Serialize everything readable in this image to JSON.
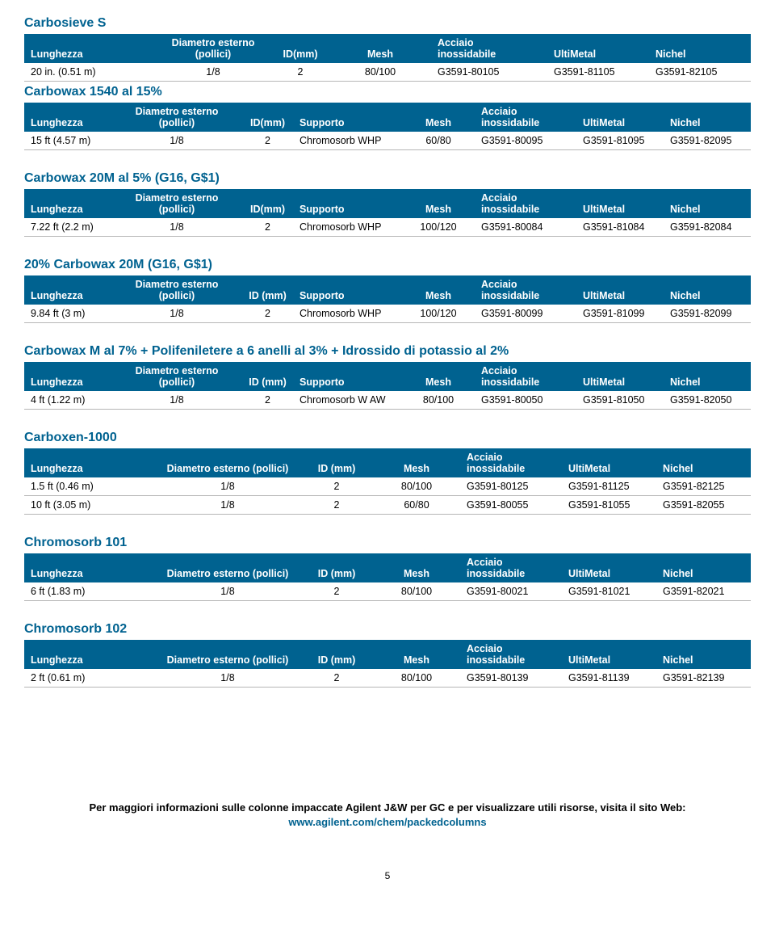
{
  "colors": {
    "title": "#006290",
    "header_bg": "#006290",
    "header_fg": "#ffffff",
    "row_border": "#b6b6b6",
    "link": "#006290",
    "text": "#000000",
    "background": "#ffffff"
  },
  "sections": [
    {
      "title": "Carbosieve S",
      "cols": [
        "Lunghezza",
        "Diametro esterno\n(pollici)",
        "ID(mm)",
        "Mesh",
        "Acciaio\ninossidabile",
        "UltiMetal",
        "Nichel"
      ],
      "widths": [
        "18%",
        "16%",
        "8%",
        "14%",
        "16%",
        "14%",
        "14%"
      ],
      "align": [
        "l",
        "c",
        "c",
        "c",
        "l",
        "l",
        "l"
      ],
      "rows": [
        [
          "20 in. (0.51 m)",
          "1/8",
          "2",
          "80/100",
          "G3591-80105",
          "G3591-81105",
          "G3591-82105"
        ]
      ]
    },
    {
      "title": "Carbowax 1540 al 15%",
      "cols": [
        "Lunghezza",
        "Diametro esterno (pollici)",
        "ID(mm)",
        "Supporto",
        "Mesh",
        "Acciaio inossidabile",
        "UltiMetal",
        "Nichel"
      ],
      "widths": [
        "12%",
        "18%",
        "7%",
        "15%",
        "10%",
        "14%",
        "12%",
        "12%"
      ],
      "align": [
        "l",
        "c",
        "c",
        "l",
        "c",
        "l",
        "l",
        "l"
      ],
      "rows": [
        [
          "15 ft (4.57 m)",
          "1/8",
          "2",
          "Chromosorb WHP",
          "60/80",
          "G3591-80095",
          "G3591-81095",
          "G3591-82095"
        ]
      ]
    },
    {
      "title": "Carbowax 20M al 5% (G16, G$1)",
      "cols": [
        "Lunghezza",
        "Diametro esterno (pollici)",
        "ID(mm)",
        "Supporto",
        "Mesh",
        "Acciaio inossidabile",
        "UltiMetal",
        "Nichel"
      ],
      "widths": [
        "12%",
        "18%",
        "7%",
        "15%",
        "10%",
        "14%",
        "12%",
        "12%"
      ],
      "align": [
        "l",
        "c",
        "c",
        "l",
        "c",
        "l",
        "l",
        "l"
      ],
      "rows": [
        [
          "7.22 ft (2.2 m)",
          "1/8",
          "2",
          "Chromosorb WHP",
          "100/120",
          "G3591-80084",
          "G3591-81084",
          "G3591-82084"
        ]
      ]
    },
    {
      "title": "20% Carbowax 20M (G16, G$1)",
      "cols": [
        "Lunghezza",
        "Diametro esterno (pollici)",
        "ID (mm)",
        "Supporto",
        "Mesh",
        "Acciaio inossidabile",
        "UltiMetal",
        "Nichel"
      ],
      "widths": [
        "12%",
        "18%",
        "7%",
        "15%",
        "10%",
        "14%",
        "12%",
        "12%"
      ],
      "align": [
        "l",
        "c",
        "c",
        "l",
        "c",
        "l",
        "l",
        "l"
      ],
      "rows": [
        [
          "9.84 ft (3 m)",
          "1/8",
          "2",
          "Chromosorb WHP",
          "100/120",
          "G3591-80099",
          "G3591-81099",
          "G3591-82099"
        ]
      ]
    },
    {
      "title": "Carbowax M al 7% + Polifeniletere a 6 anelli al 3% + Idrossido di potassio al 2%",
      "cols": [
        "Lunghezza",
        "Diametro esterno (pollici)",
        "ID (mm)",
        "Supporto",
        "Mesh",
        "Acciaio inossidabile",
        "UltiMetal",
        "Nichel"
      ],
      "widths": [
        "12%",
        "18%",
        "7%",
        "15%",
        "10%",
        "14%",
        "12%",
        "12%"
      ],
      "align": [
        "l",
        "c",
        "c",
        "l",
        "c",
        "l",
        "l",
        "l"
      ],
      "rows": [
        [
          "4 ft (1.22 m)",
          "1/8",
          "2",
          "Chromosorb W AW",
          "80/100",
          "G3591-80050",
          "G3591-81050",
          "G3591-82050"
        ]
      ]
    },
    {
      "title": "Carboxen-1000",
      "cols": [
        "Lunghezza",
        "Diametro esterno (pollici)",
        "ID (mm)",
        "Mesh",
        "Acciaio inossidabile",
        "UltiMetal",
        "Nichel"
      ],
      "widths": [
        "18%",
        "20%",
        "10%",
        "12%",
        "14%",
        "13%",
        "13%"
      ],
      "align": [
        "l",
        "c",
        "c",
        "c",
        "l",
        "l",
        "l"
      ],
      "rows": [
        [
          "1.5 ft (0.46 m)",
          "1/8",
          "2",
          "80/100",
          "G3591-80125",
          "G3591-81125",
          "G3591-82125"
        ],
        [
          "10 ft (3.05 m)",
          "1/8",
          "2",
          "60/80",
          "G3591-80055",
          "G3591-81055",
          "G3591-82055"
        ]
      ]
    },
    {
      "title": "Chromosorb 101",
      "cols": [
        "Lunghezza",
        "Diametro esterno (pollici)",
        "ID (mm)",
        "Mesh",
        "Acciaio inossidabile",
        "UltiMetal",
        "Nichel"
      ],
      "widths": [
        "18%",
        "20%",
        "10%",
        "12%",
        "14%",
        "13%",
        "13%"
      ],
      "align": [
        "l",
        "c",
        "c",
        "c",
        "l",
        "l",
        "l"
      ],
      "rows": [
        [
          "6 ft (1.83 m)",
          "1/8",
          "2",
          "80/100",
          "G3591-80021",
          "G3591-81021",
          "G3591-82021"
        ]
      ]
    },
    {
      "title": "Chromosorb 102",
      "cols": [
        "Lunghezza",
        "Diametro esterno (pollici)",
        "ID (mm)",
        "Mesh",
        "Acciaio inossidabile",
        "UltiMetal",
        "Nichel"
      ],
      "widths": [
        "18%",
        "20%",
        "10%",
        "12%",
        "14%",
        "13%",
        "13%"
      ],
      "align": [
        "l",
        "c",
        "c",
        "c",
        "l",
        "l",
        "l"
      ],
      "rows": [
        [
          "2 ft (0.61 m)",
          "1/8",
          "2",
          "80/100",
          "G3591-80139",
          "G3591-81139",
          "G3591-82139"
        ]
      ]
    }
  ],
  "footer": {
    "text": "Per maggiori informazioni sulle colonne impaccate Agilent J&W per GC e per visualizzare utili risorse, visita il sito Web:",
    "link": "www.agilent.com/chem/packedcolumns"
  },
  "page_number": "5"
}
